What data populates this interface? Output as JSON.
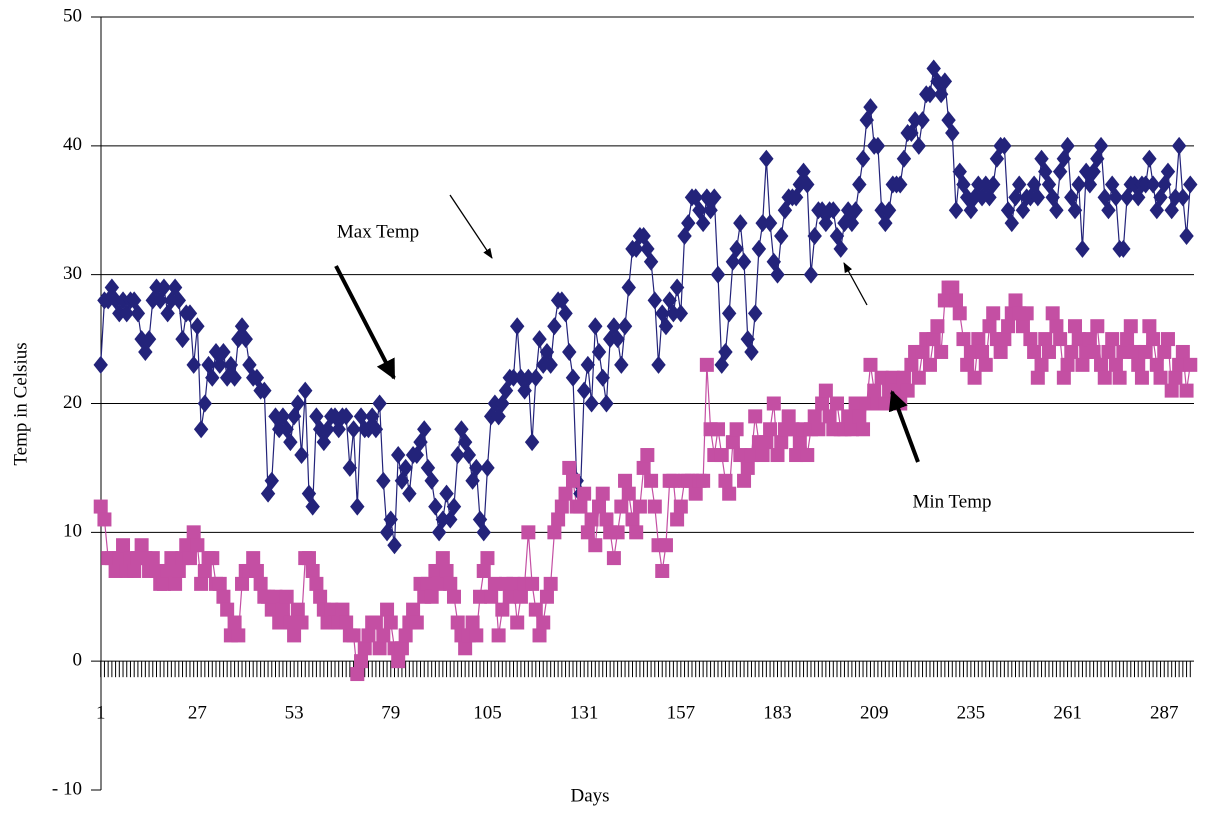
{
  "chart_data": {
    "type": "line",
    "xlabel": "Days",
    "ylabel": "Temp in Celsius",
    "annotations": [
      "Max Temp",
      "Min Temp"
    ],
    "xlim": [
      0,
      295
    ],
    "xticks": [
      1,
      27,
      53,
      79,
      105,
      131,
      157,
      183,
      209,
      235,
      261,
      287
    ],
    "ylim": [
      -10,
      50
    ],
    "yticks": [
      {
        "value": -10,
        "label": "- 10"
      },
      0,
      10,
      20,
      30,
      40,
      50
    ],
    "grid": true,
    "x": [
      1,
      2,
      3,
      4,
      5,
      6,
      7,
      8,
      9,
      10,
      11,
      12,
      13,
      14,
      15,
      16,
      17,
      18,
      19,
      20,
      21,
      22,
      23,
      24,
      25,
      26,
      27,
      28,
      29,
      30,
      31,
      32,
      33,
      34,
      35,
      36,
      37,
      38,
      39,
      40,
      41,
      42,
      43,
      44,
      45,
      46,
      47,
      48,
      49,
      50,
      51,
      52,
      53,
      54,
      55,
      56,
      57,
      58,
      59,
      60,
      61,
      62,
      63,
      64,
      65,
      66,
      67,
      68,
      69,
      70,
      71,
      72,
      73,
      74,
      75,
      76,
      77,
      78,
      79,
      80,
      81,
      82,
      83,
      84,
      85,
      86,
      87,
      88,
      89,
      90,
      91,
      92,
      93,
      94,
      95,
      96,
      97,
      98,
      99,
      100,
      101,
      102,
      103,
      104,
      105,
      106,
      107,
      108,
      109,
      110,
      111,
      112,
      113,
      114,
      115,
      116,
      117,
      118,
      119,
      120,
      121,
      122,
      123,
      124,
      125,
      126,
      127,
      128,
      129,
      130,
      131,
      132,
      133,
      134,
      135,
      136,
      137,
      138,
      139,
      140,
      141,
      142,
      143,
      144,
      145,
      146,
      147,
      148,
      149,
      150,
      151,
      152,
      153,
      154,
      155,
      156,
      157,
      158,
      159,
      160,
      161,
      162,
      163,
      164,
      165,
      166,
      167,
      168,
      169,
      170,
      171,
      172,
      173,
      174,
      175,
      176,
      177,
      178,
      179,
      180,
      181,
      182,
      183,
      184,
      185,
      186,
      187,
      188,
      189,
      190,
      191,
      192,
      193,
      194,
      195,
      196,
      197,
      198,
      199,
      200,
      201,
      202,
      203,
      204,
      205,
      206,
      207,
      208,
      209,
      210,
      211,
      212,
      213,
      214,
      215,
      216,
      217,
      218,
      219,
      220,
      221,
      222,
      223,
      224,
      225,
      226,
      227,
      228,
      229,
      230,
      231,
      232,
      233,
      234,
      235,
      236,
      237,
      238,
      239,
      240,
      241,
      242,
      243,
      244,
      245,
      246,
      247,
      248,
      249,
      250,
      251,
      252,
      253,
      254,
      255,
      256,
      257,
      258,
      259,
      260,
      261,
      262,
      263,
      264,
      265,
      266,
      267,
      268,
      269,
      270,
      271,
      272,
      273,
      274,
      275,
      276,
      277,
      278,
      279,
      280,
      281,
      282,
      283,
      284,
      285,
      286,
      287,
      288,
      289,
      290,
      291,
      292,
      293,
      294
    ],
    "series": [
      {
        "color": "#23237a",
        "marker": "diamond",
        "values": [
          23,
          28,
          28,
          29,
          28,
          27,
          28,
          27,
          28,
          28,
          27,
          25,
          24,
          25,
          28,
          29,
          28,
          29,
          27,
          28,
          29,
          28,
          25,
          27,
          27,
          23,
          26,
          18,
          20,
          23,
          22,
          24,
          23,
          24,
          22,
          23,
          22,
          25,
          26,
          25,
          23,
          22,
          22,
          21,
          21,
          13,
          14,
          19,
          18,
          19,
          18,
          17,
          19,
          20,
          16,
          21,
          13,
          12,
          19,
          18,
          17,
          18,
          19,
          19,
          18,
          19,
          19,
          15,
          18,
          12,
          19,
          18,
          18,
          19,
          18,
          20,
          14,
          10,
          11,
          9,
          16,
          14,
          15,
          13,
          16,
          16,
          17,
          18,
          15,
          14,
          12,
          10,
          11,
          13,
          11,
          12,
          16,
          18,
          17,
          16,
          14,
          15,
          11,
          10,
          15,
          19,
          20,
          19,
          20,
          21,
          22,
          22,
          26,
          22,
          21,
          22,
          17,
          22,
          25,
          23,
          24,
          23,
          26,
          28,
          28,
          27,
          24,
          22,
          14,
          13,
          21,
          23,
          20,
          26,
          24,
          22,
          20,
          25,
          26,
          25,
          23,
          26,
          29,
          32,
          32,
          33,
          33,
          32,
          31,
          28,
          23,
          27,
          26,
          28,
          27,
          29,
          27,
          33,
          34,
          36,
          36,
          35,
          34,
          36,
          35,
          36,
          30,
          23,
          24,
          27,
          31,
          32,
          34,
          31,
          25,
          24,
          27,
          32,
          34,
          39,
          34,
          31,
          30,
          33,
          35,
          36,
          36,
          36,
          37,
          38,
          37,
          30,
          33,
          35,
          35,
          34,
          35,
          35,
          33,
          32,
          34,
          35,
          34,
          35,
          37,
          39,
          42,
          43,
          40,
          40,
          35,
          34,
          35,
          37,
          37,
          37,
          39,
          41,
          41,
          42,
          40,
          42,
          44,
          44,
          46,
          45,
          44,
          45,
          42,
          41,
          35,
          38,
          37,
          36,
          35,
          36,
          37,
          36,
          37,
          36,
          37,
          39,
          40,
          40,
          35,
          34,
          36,
          37,
          35,
          36,
          36,
          37,
          36,
          39,
          38,
          37,
          36,
          35,
          38,
          39,
          40,
          36,
          35,
          37,
          32,
          38,
          37,
          38,
          39,
          40,
          36,
          35,
          37,
          36,
          32,
          32,
          36,
          37,
          37,
          36,
          37,
          37,
          39,
          37,
          35,
          36,
          37,
          38,
          35,
          36,
          40,
          36,
          33,
          37
        ]
      },
      {
        "color": "#c44fa3",
        "marker": "square",
        "values": [
          12,
          11,
          8,
          8,
          7,
          8,
          9,
          7,
          8,
          7,
          8,
          9,
          8,
          7,
          8,
          7,
          6,
          6,
          7,
          8,
          6,
          7,
          8,
          9,
          8,
          10,
          9,
          6,
          7,
          8,
          8,
          6,
          6,
          5,
          4,
          2,
          3,
          2,
          6,
          7,
          7,
          8,
          7,
          6,
          5,
          5,
          4,
          5,
          3,
          4,
          5,
          3,
          2,
          4,
          3,
          8,
          8,
          7,
          6,
          5,
          4,
          3,
          4,
          3,
          3,
          4,
          3,
          2,
          2,
          -1,
          0,
          1,
          2,
          3,
          3,
          1,
          2,
          4,
          3,
          1,
          0,
          1,
          2,
          3,
          4,
          3,
          6,
          5,
          6,
          5,
          7,
          6,
          8,
          7,
          6,
          5,
          3,
          2,
          1,
          2,
          3,
          2,
          5,
          7,
          8,
          5,
          6,
          2,
          4,
          6,
          5,
          6,
          3,
          5,
          6,
          10,
          6,
          4,
          2,
          3,
          5,
          6,
          10,
          11,
          12,
          13,
          15,
          14,
          12,
          12,
          13,
          10,
          11,
          9,
          12,
          13,
          11,
          10,
          8,
          10,
          12,
          14,
          13,
          11,
          10,
          12,
          15,
          16,
          14,
          12,
          9,
          7,
          9,
          14,
          14,
          11,
          12,
          14,
          14,
          14,
          13,
          14,
          14,
          23,
          18,
          16,
          18,
          16,
          14,
          13,
          17,
          18,
          16,
          14,
          15,
          16,
          19,
          17,
          16,
          17,
          18,
          20,
          16,
          17,
          18,
          19,
          18,
          16,
          17,
          18,
          16,
          18,
          19,
          18,
          20,
          21,
          19,
          18,
          20,
          18,
          18,
          19,
          18,
          20,
          19,
          18,
          20,
          23,
          21,
          20,
          22,
          20,
          21,
          22,
          21,
          20,
          22,
          21,
          23,
          24,
          22,
          24,
          25,
          23,
          25,
          26,
          24,
          28,
          29,
          29,
          28,
          27,
          25,
          23,
          24,
          22,
          25,
          24,
          23,
          26,
          27,
          25,
          24,
          25,
          26,
          27,
          28,
          27,
          26,
          27,
          25,
          24,
          22,
          23,
          25,
          24,
          27,
          26,
          25,
          22,
          23,
          24,
          26,
          25,
          23,
          24,
          25,
          24,
          26,
          23,
          22,
          24,
          25,
          23,
          22,
          24,
          25,
          26,
          24,
          23,
          22,
          24,
          26,
          25,
          23,
          22,
          24,
          25,
          21,
          22,
          23,
          24,
          21,
          23
        ]
      }
    ]
  }
}
